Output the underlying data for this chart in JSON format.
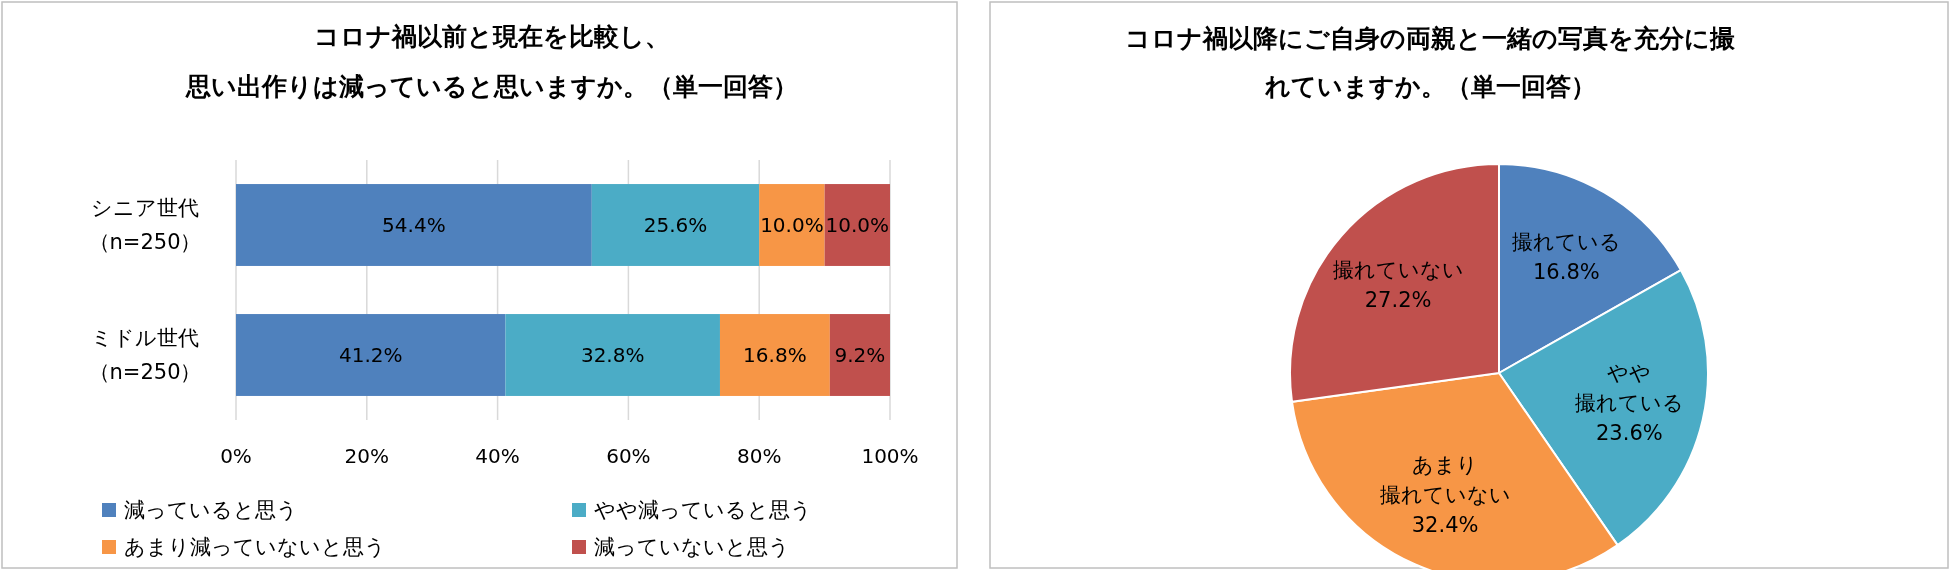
{
  "chart_data": [
    {
      "type": "bar",
      "orientation": "horizontal",
      "stacked": true,
      "title": "コロナ禍以前と現在を比較し、思い出作りは減っていると思いますか。（単一回答）",
      "categories": [
        "シニア世代（n=250）",
        "ミドル世代（n=250）"
      ],
      "series": [
        {
          "name": "減っていると思う",
          "color": "#4f81bd",
          "values": [
            54.4,
            41.2
          ],
          "value_labels": [
            "54.4%",
            "41.2%"
          ]
        },
        {
          "name": "やや減っていると思う",
          "color": "#4bacc6",
          "values": [
            25.6,
            32.8
          ],
          "value_labels": [
            "25.6%",
            "32.8%"
          ]
        },
        {
          "name": "あまり減っていないと思う",
          "color": "#f79646",
          "values": [
            10.0,
            16.8
          ],
          "value_labels": [
            "10.0%",
            "16.8%"
          ]
        },
        {
          "name": "減っていないと思う",
          "color": "#c0504d",
          "values": [
            10.0,
            9.2
          ],
          "value_labels": [
            "10.0%",
            "9.2%"
          ]
        }
      ],
      "xlim": [
        0,
        100
      ],
      "xticks": [
        {
          "value": 0,
          "label": "0%"
        },
        {
          "value": 20,
          "label": "20%"
        },
        {
          "value": 40,
          "label": "40%"
        },
        {
          "value": 60,
          "label": "60%"
        },
        {
          "value": 80,
          "label": "80%"
        },
        {
          "value": 100,
          "label": "100%"
        }
      ],
      "grid": "x",
      "legend": "bottom"
    },
    {
      "type": "pie",
      "title": "コロナ禍以降にご自身の両親と一緒の写真を充分に撮れていますか。（単一回答）",
      "categories": [
        "撮れている",
        "やや撮れている",
        "あまり撮れていない",
        "撮れていない"
      ],
      "values": [
        16.8,
        23.6,
        32.4,
        27.2
      ],
      "value_labels": [
        "16.8%",
        "23.6%",
        "32.4%",
        "27.2%"
      ],
      "colors": [
        "#4f81bd",
        "#4bacc6",
        "#f79646",
        "#c0504d"
      ]
    }
  ]
}
